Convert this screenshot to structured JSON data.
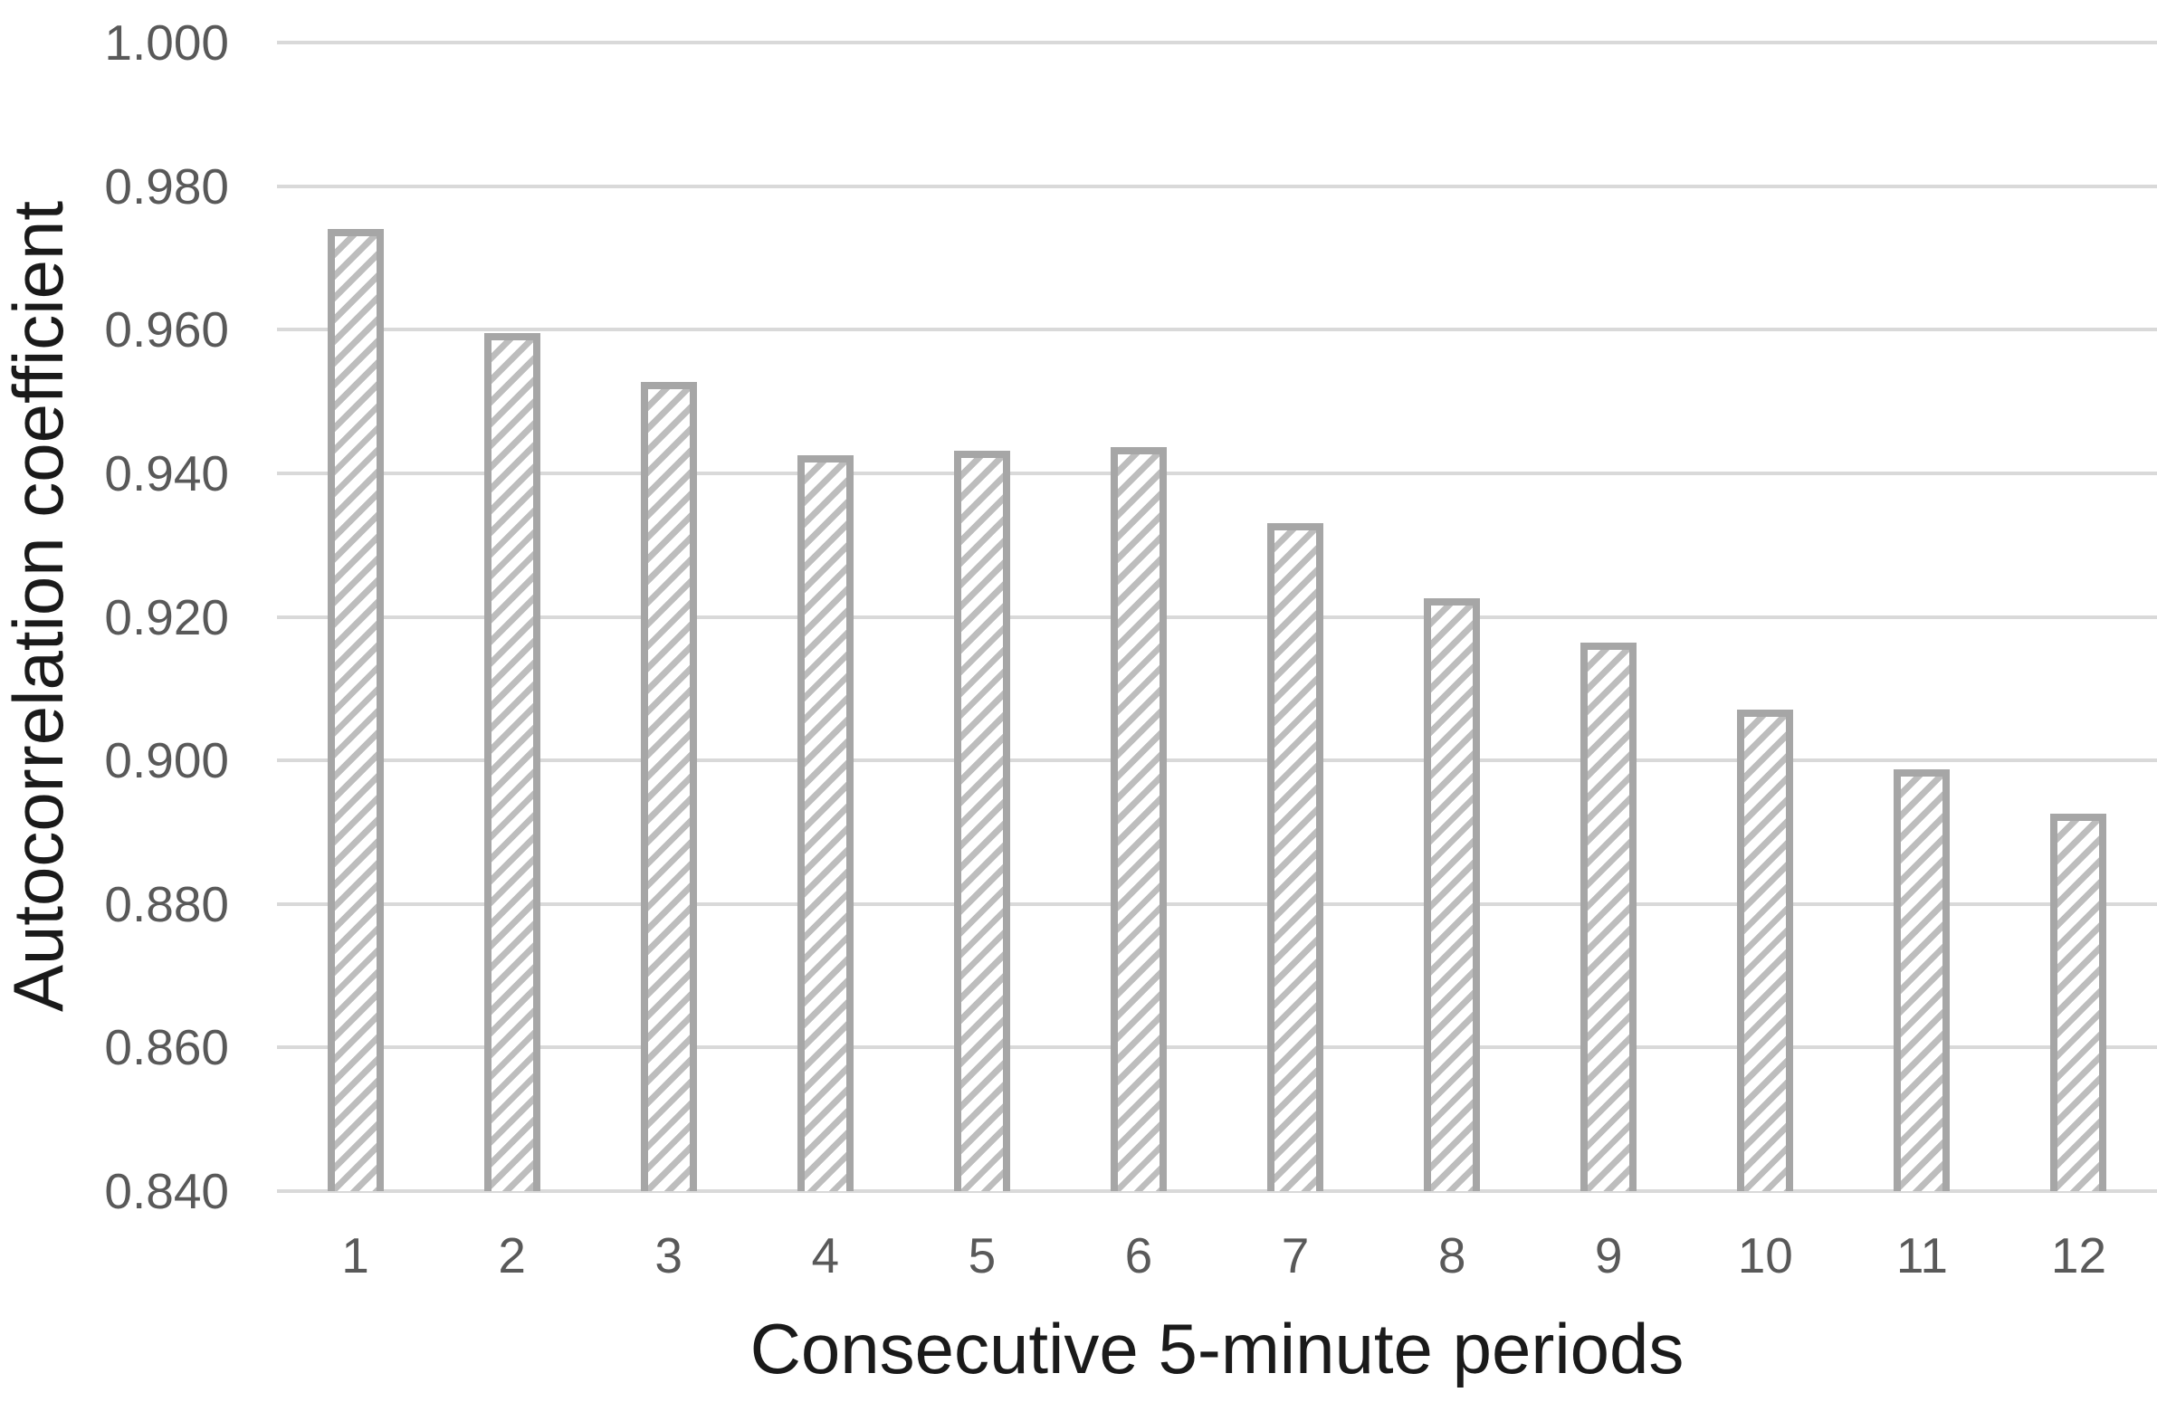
{
  "chart_data": {
    "type": "bar",
    "title": "",
    "xlabel": "Consecutive 5-minute periods",
    "ylabel": "Autocorrelation coefficient",
    "categories": [
      "1",
      "2",
      "3",
      "4",
      "5",
      "6",
      "7",
      "8",
      "9",
      "10",
      "11",
      "12"
    ],
    "values": [
      0.974,
      0.9595,
      0.9527,
      0.9425,
      0.9431,
      0.9437,
      0.9331,
      0.9226,
      0.9164,
      0.9071,
      0.8988,
      0.8926
    ],
    "ylim": [
      0.84,
      1.0
    ],
    "ytick_step": 0.02,
    "ytick_labels": [
      "1.000",
      "0.980",
      "0.960",
      "0.940",
      "0.920",
      "0.900",
      "0.880",
      "0.860",
      "0.840"
    ],
    "grid": true,
    "legend_position": "none",
    "bar_style": {
      "fill": "#ffffff",
      "hatch": "diagonal-forward",
      "hatch_color": "#bdbdbd",
      "border_color": "#a6a6a6"
    }
  },
  "colors": {
    "gridline": "#d9d9d9",
    "tick_text": "#595959",
    "title_text": "#1a1a1a",
    "background": "#ffffff"
  }
}
